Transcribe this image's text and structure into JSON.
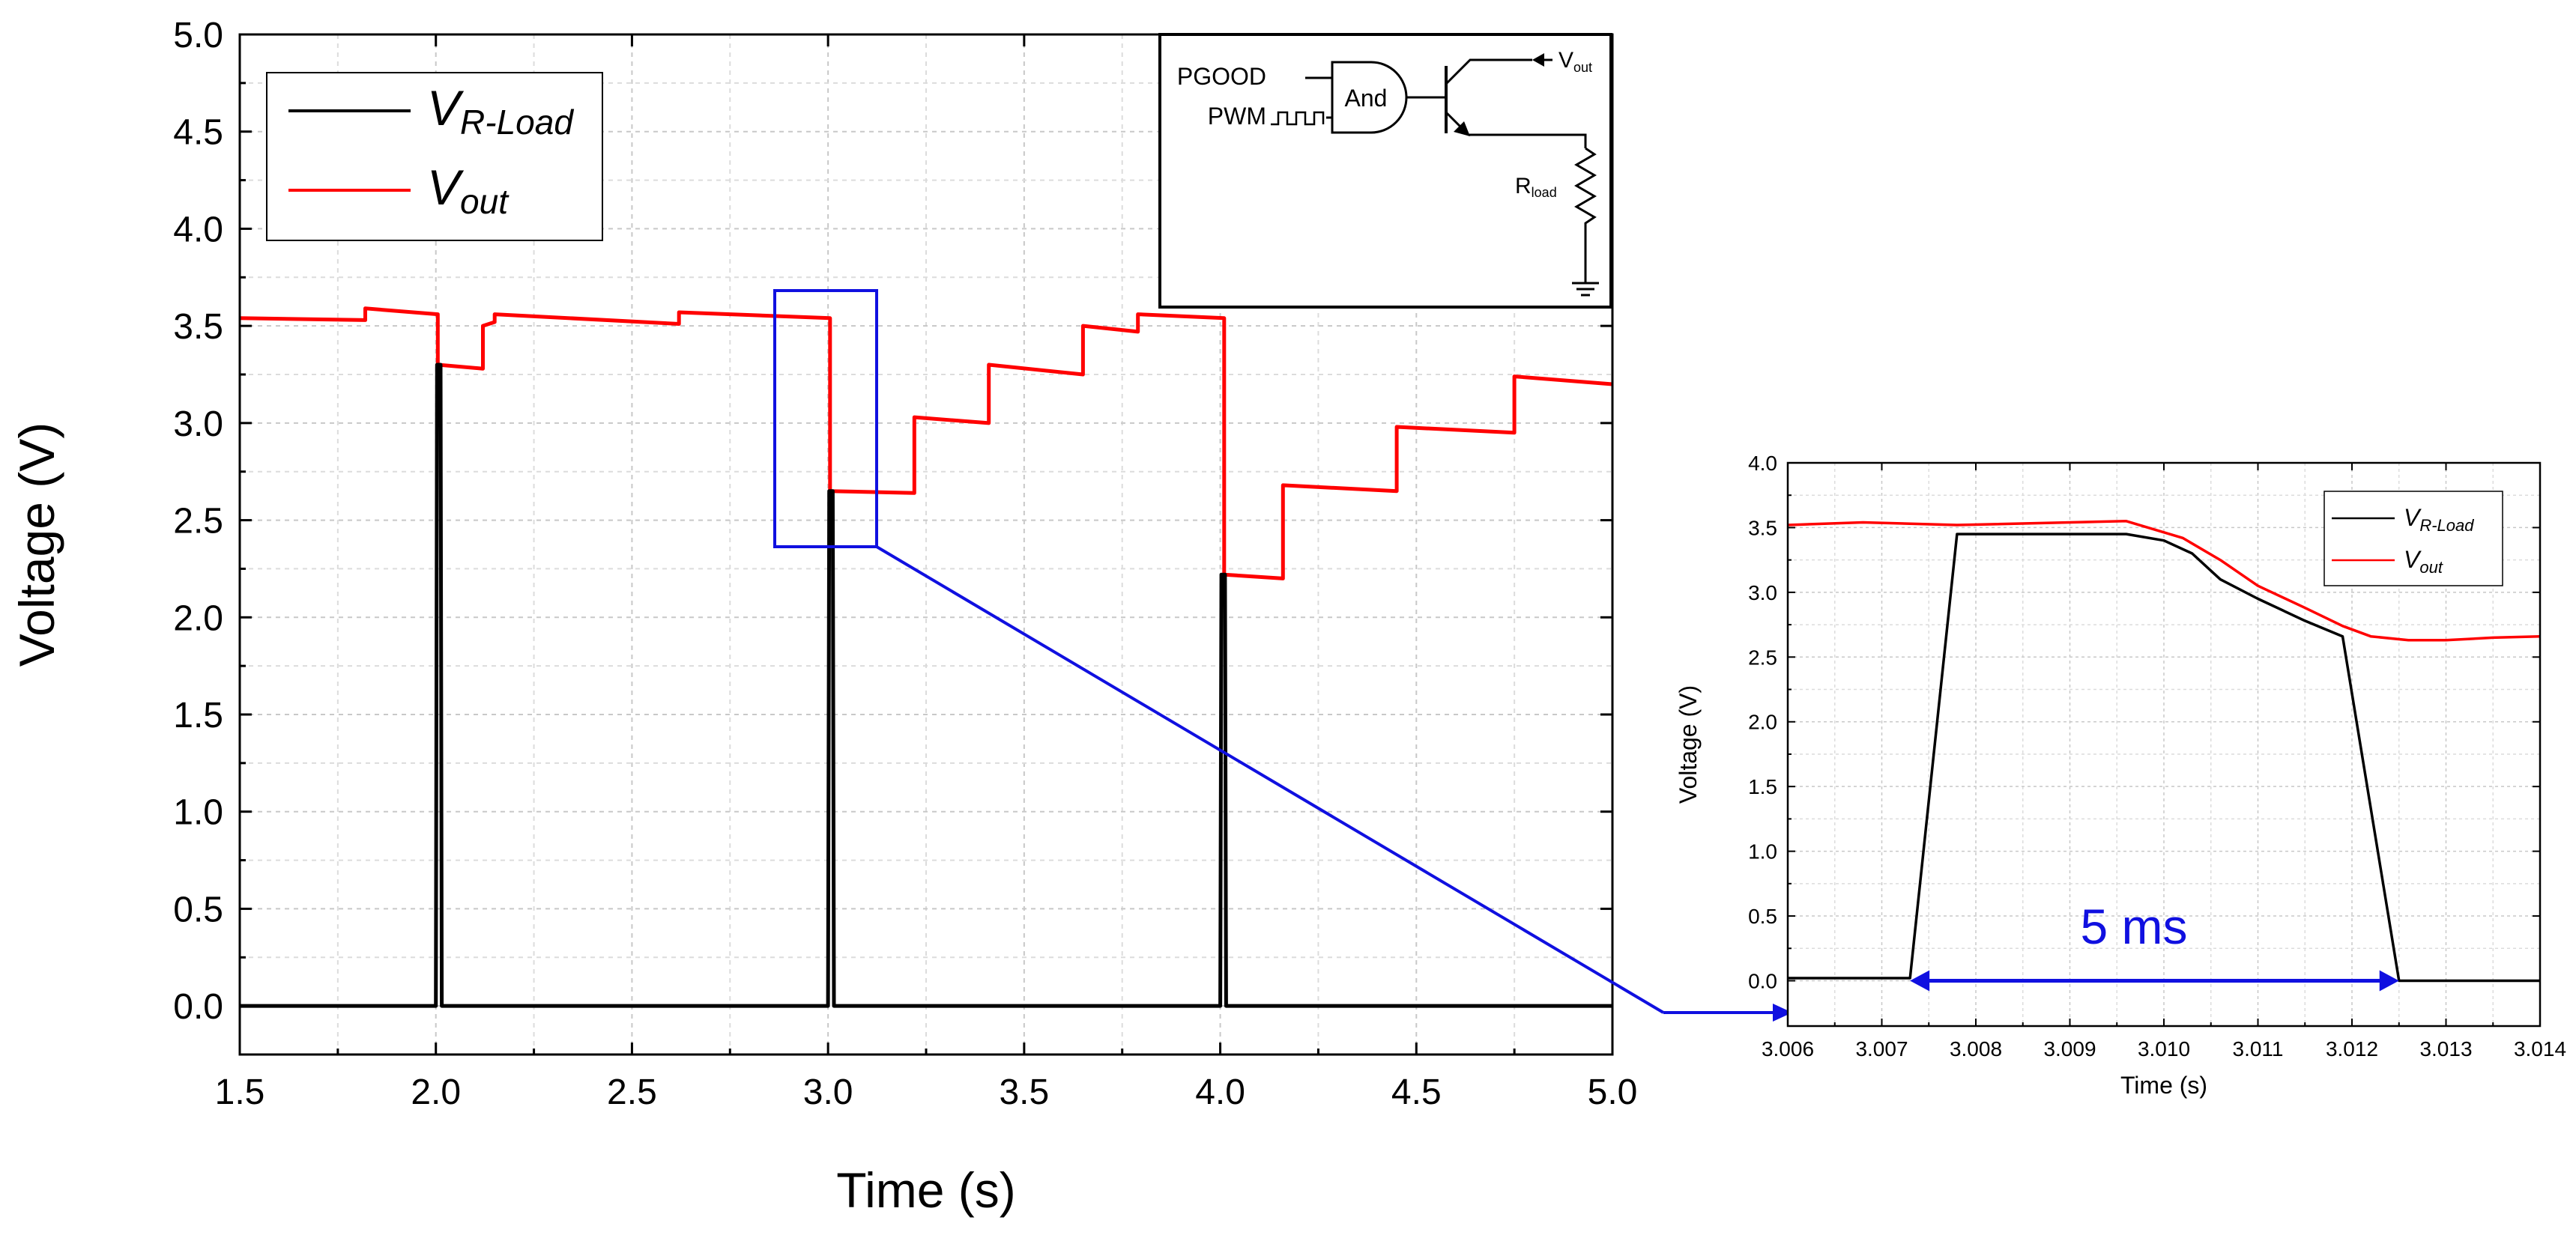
{
  "chart_data": [
    {
      "id": "main",
      "type": "line",
      "xlabel": "Time (s)",
      "ylabel": "Voltage (V)",
      "xlim": [
        1.5,
        5.0
      ],
      "ylim": [
        -0.25,
        5.0
      ],
      "xticks": [
        "1.5",
        "2.0",
        "2.5",
        "3.0",
        "3.5",
        "4.0",
        "4.5",
        "5.0"
      ],
      "yticks": [
        "0.0",
        "0.5",
        "1.0",
        "1.5",
        "2.0",
        "2.5",
        "3.0",
        "3.5",
        "4.0",
        "4.5",
        "5.0"
      ],
      "grid": true,
      "legend_position": "top-left",
      "series": [
        {
          "name": "R-Load",
          "color": "#000000",
          "x": [
            1.5,
            2.0,
            2.003,
            2.006,
            2.012,
            2.015,
            3.0,
            3.003,
            3.006,
            3.012,
            3.015,
            4.0,
            4.003,
            4.006,
            4.012,
            4.015,
            5.0
          ],
          "y": [
            0.0,
            0.0,
            3.3,
            3.3,
            3.3,
            0.0,
            0.0,
            2.65,
            2.65,
            2.65,
            0.0,
            0.0,
            2.22,
            2.22,
            2.22,
            0.0,
            0.0
          ]
        },
        {
          "name": "out",
          "color": "#ff0000",
          "x": [
            1.5,
            1.82,
            1.82,
            2.005,
            2.005,
            2.12,
            2.12,
            2.15,
            2.15,
            2.62,
            2.62,
            3.005,
            3.005,
            3.22,
            3.22,
            3.41,
            3.41,
            3.65,
            3.65,
            3.79,
            3.79,
            4.01,
            4.01,
            4.16,
            4.16,
            4.45,
            4.45,
            4.75,
            4.75,
            5.0
          ],
          "y": [
            3.54,
            3.53,
            3.59,
            3.56,
            3.3,
            3.28,
            3.5,
            3.52,
            3.56,
            3.51,
            3.57,
            3.54,
            2.65,
            2.64,
            3.03,
            3.0,
            3.3,
            3.25,
            3.5,
            3.47,
            3.56,
            3.54,
            2.22,
            2.2,
            2.68,
            2.65,
            2.98,
            2.95,
            3.24,
            3.2
          ]
        }
      ]
    },
    {
      "id": "inset",
      "type": "line",
      "xlabel": "Time (s)",
      "ylabel": "Voltage (V)",
      "xlim": [
        3.006,
        3.014
      ],
      "ylim": [
        -0.35,
        4.0
      ],
      "xticks": [
        "3.006",
        "3.007",
        "3.008",
        "3.009",
        "3.010",
        "3.011",
        "3.012",
        "3.013",
        "3.014"
      ],
      "yticks": [
        "0.0",
        "0.5",
        "1.0",
        "1.5",
        "2.0",
        "2.5",
        "3.0",
        "3.5",
        "4.0"
      ],
      "grid": true,
      "legend_position": "top-right",
      "annotation": "5 ms",
      "annotation_range": [
        3.0073,
        3.0125
      ],
      "series": [
        {
          "name": "R-Load",
          "color": "#000000",
          "x": [
            3.006,
            3.0073,
            3.0078,
            3.0096,
            3.01,
            3.0103,
            3.0106,
            3.011,
            3.0115,
            3.0119,
            3.0125,
            3.014
          ],
          "y": [
            0.02,
            0.02,
            3.45,
            3.45,
            3.4,
            3.3,
            3.1,
            2.95,
            2.78,
            2.66,
            0.0,
            0.0
          ]
        },
        {
          "name": "out",
          "color": "#ff0000",
          "x": [
            3.006,
            3.0068,
            3.0078,
            3.0096,
            3.0102,
            3.0106,
            3.011,
            3.0115,
            3.0119,
            3.0122,
            3.0126,
            3.013,
            3.0135,
            3.014
          ],
          "y": [
            3.52,
            3.54,
            3.52,
            3.55,
            3.42,
            3.25,
            3.05,
            2.88,
            2.74,
            2.66,
            2.63,
            2.63,
            2.65,
            2.66
          ]
        }
      ]
    }
  ],
  "legend": {
    "r_load_main": "V",
    "r_load_sub": "R-Load",
    "out_main": "V",
    "out_sub": "out"
  },
  "circuit": {
    "pgood": "PGOOD",
    "pwm": "PWM",
    "gate": "And",
    "vout_main": "V",
    "vout_sub": "out",
    "rload_main": "R",
    "rload_sub": "load"
  },
  "colors": {
    "zoom_box": "#1010e0",
    "annotation": "#1010e0",
    "r_load": "#000000",
    "v_out": "#ff0000"
  }
}
